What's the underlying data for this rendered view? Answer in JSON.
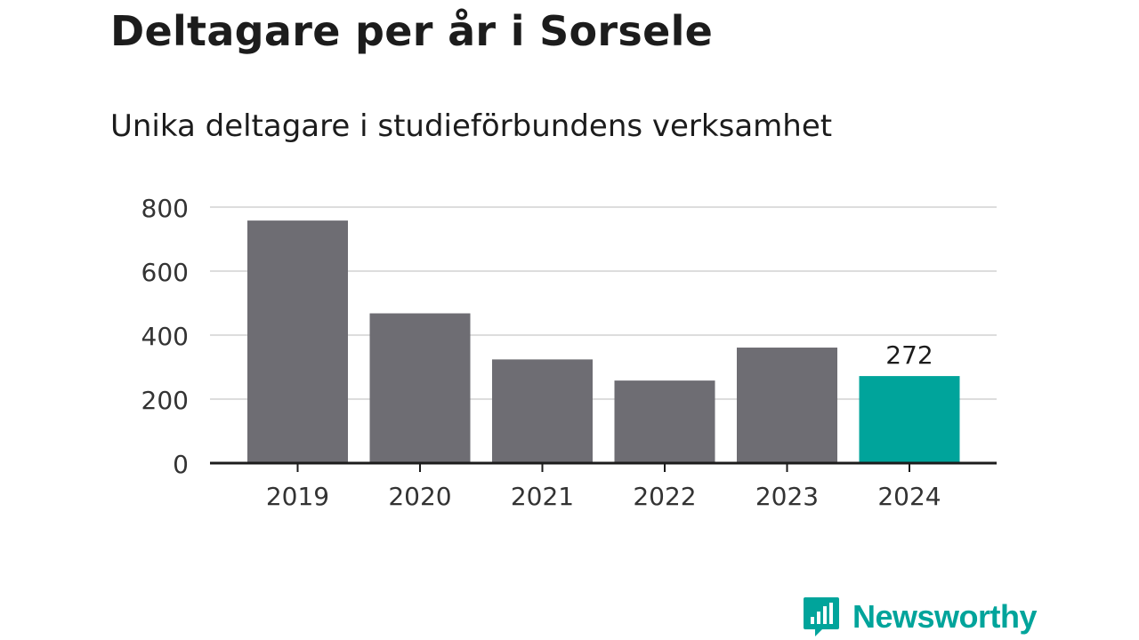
{
  "title": "Deltagare per år i Sorsele",
  "subtitle": "Unika deltagare i studieförbundens verksamhet",
  "brand": {
    "name": "Newsworthy",
    "color": "#00a49b"
  },
  "colors": {
    "bar": "#6e6d73",
    "highlight": "#00a49b",
    "grid": "#dddddd",
    "axis": "#1c1c1c",
    "text": "#333333"
  },
  "chart_data": {
    "type": "bar",
    "categories": [
      "2019",
      "2020",
      "2021",
      "2022",
      "2023",
      "2024"
    ],
    "values": [
      758,
      468,
      324,
      258,
      361,
      272
    ],
    "highlight_index": 5,
    "data_labels": [
      {
        "index": 5,
        "text": "272"
      }
    ],
    "ylim": [
      0,
      800
    ],
    "yticks": [
      0,
      200,
      400,
      600,
      800
    ],
    "grid": true,
    "legend": "none",
    "xlabel": "",
    "ylabel": ""
  }
}
